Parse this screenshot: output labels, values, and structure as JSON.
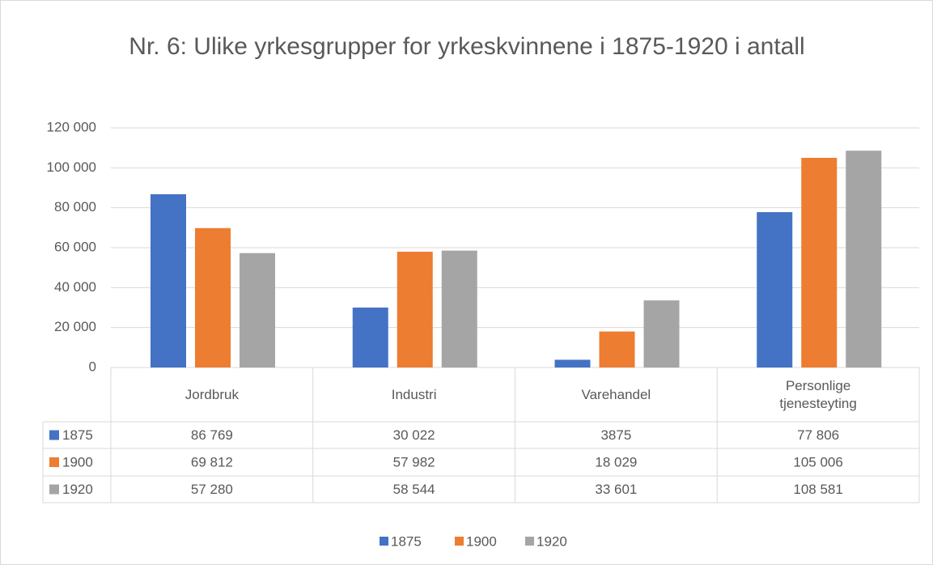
{
  "chart_data": {
    "type": "bar",
    "title": "Nr. 6: Ulike yrkesgrupper for yrkeskvinnene i 1875-1920 i antall",
    "categories": [
      "Jordbruk",
      "Industri",
      "Varehandel",
      "Personlige tjenesteyting"
    ],
    "series": [
      {
        "name": "1875",
        "color": "#4472c4",
        "values": [
          86769,
          30022,
          3875,
          77806
        ],
        "value_labels": [
          "86 769",
          "30 022",
          "3875",
          "77 806"
        ]
      },
      {
        "name": "1900",
        "color": "#ed7d31",
        "values": [
          69812,
          57982,
          18029,
          105006
        ],
        "value_labels": [
          "69 812",
          "57 982",
          "18 029",
          "105 006"
        ]
      },
      {
        "name": "1920",
        "color": "#a5a5a5",
        "values": [
          57280,
          58544,
          33601,
          108581
        ],
        "value_labels": [
          "57 280",
          "58 544",
          "33 601",
          "108 581"
        ]
      }
    ],
    "ylim": [
      0,
      120000
    ],
    "yticks": [
      0,
      {
        "value": 20000,
        "label": "20 000"
      },
      {
        "value": 40000,
        "label": "40 000"
      },
      {
        "value": 60000,
        "label": "60 000"
      },
      {
        "value": 80000,
        "label": "80 000"
      },
      {
        "value": 100000,
        "label": "100 000"
      },
      {
        "value": 120000,
        "label": "120 000"
      }
    ],
    "grid": true,
    "legend": "bottom"
  }
}
